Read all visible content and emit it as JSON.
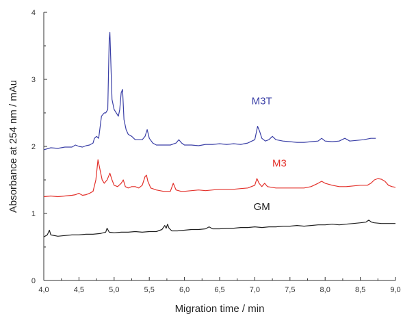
{
  "chart_data": {
    "type": "line",
    "xlabel": "Migration time / min",
    "ylabel": "Absorbance at 254 nm / mAu",
    "xlim": [
      4.0,
      9.0
    ],
    "ylim": [
      0,
      4
    ],
    "x_ticks": [
      4.0,
      4.5,
      5.0,
      5.5,
      6.0,
      6.5,
      7.0,
      7.5,
      8.0,
      8.5,
      9.0
    ],
    "x_tick_labels": [
      "4,0",
      "4,5",
      "5,0",
      "5,5",
      "6,0",
      "6,5",
      "7,0",
      "7,5",
      "8,0",
      "8,5",
      "9,0"
    ],
    "y_ticks": [
      0,
      1,
      2,
      3,
      4
    ],
    "y_tick_labels": [
      "0",
      "1",
      "2",
      "3",
      "4"
    ],
    "grid": false,
    "series": [
      {
        "name": "M3T",
        "color": "#3a3fa6",
        "points": [
          [
            4.0,
            1.95
          ],
          [
            4.1,
            1.98
          ],
          [
            4.2,
            1.97
          ],
          [
            4.3,
            1.99
          ],
          [
            4.4,
            1.99
          ],
          [
            4.45,
            2.02
          ],
          [
            4.5,
            2.0
          ],
          [
            4.55,
            1.99
          ],
          [
            4.6,
            2.01
          ],
          [
            4.65,
            2.02
          ],
          [
            4.7,
            2.05
          ],
          [
            4.72,
            2.12
          ],
          [
            4.75,
            2.15
          ],
          [
            4.78,
            2.12
          ],
          [
            4.82,
            2.45
          ],
          [
            4.86,
            2.5
          ],
          [
            4.88,
            2.5
          ],
          [
            4.91,
            2.55
          ],
          [
            4.93,
            3.6
          ],
          [
            4.94,
            3.7
          ],
          [
            4.95,
            3.35
          ],
          [
            4.97,
            2.7
          ],
          [
            5.0,
            2.55
          ],
          [
            5.03,
            2.5
          ],
          [
            5.06,
            2.45
          ],
          [
            5.08,
            2.55
          ],
          [
            5.1,
            2.8
          ],
          [
            5.12,
            2.85
          ],
          [
            5.14,
            2.4
          ],
          [
            5.17,
            2.25
          ],
          [
            5.2,
            2.18
          ],
          [
            5.25,
            2.15
          ],
          [
            5.3,
            2.1
          ],
          [
            5.35,
            2.1
          ],
          [
            5.4,
            2.1
          ],
          [
            5.44,
            2.15
          ],
          [
            5.47,
            2.25
          ],
          [
            5.5,
            2.12
          ],
          [
            5.55,
            2.05
          ],
          [
            5.6,
            2.02
          ],
          [
            5.7,
            2.02
          ],
          [
            5.8,
            2.02
          ],
          [
            5.88,
            2.05
          ],
          [
            5.92,
            2.1
          ],
          [
            5.96,
            2.05
          ],
          [
            6.0,
            2.02
          ],
          [
            6.1,
            2.02
          ],
          [
            6.2,
            2.01
          ],
          [
            6.3,
            2.03
          ],
          [
            6.4,
            2.03
          ],
          [
            6.5,
            2.04
          ],
          [
            6.6,
            2.03
          ],
          [
            6.7,
            2.04
          ],
          [
            6.8,
            2.03
          ],
          [
            6.9,
            2.05
          ],
          [
            7.0,
            2.1
          ],
          [
            7.04,
            2.3
          ],
          [
            7.07,
            2.22
          ],
          [
            7.1,
            2.12
          ],
          [
            7.15,
            2.08
          ],
          [
            7.2,
            2.1
          ],
          [
            7.25,
            2.15
          ],
          [
            7.3,
            2.1
          ],
          [
            7.4,
            2.08
          ],
          [
            7.5,
            2.07
          ],
          [
            7.6,
            2.06
          ],
          [
            7.7,
            2.06
          ],
          [
            7.8,
            2.07
          ],
          [
            7.9,
            2.08
          ],
          [
            7.95,
            2.12
          ],
          [
            8.0,
            2.08
          ],
          [
            8.1,
            2.07
          ],
          [
            8.2,
            2.08
          ],
          [
            8.28,
            2.12
          ],
          [
            8.35,
            2.08
          ],
          [
            8.45,
            2.09
          ],
          [
            8.55,
            2.1
          ],
          [
            8.65,
            2.12
          ],
          [
            8.72,
            2.12
          ]
        ]
      },
      {
        "name": "M3",
        "color": "#e3302a",
        "points": [
          [
            4.0,
            1.25
          ],
          [
            4.1,
            1.26
          ],
          [
            4.2,
            1.25
          ],
          [
            4.3,
            1.26
          ],
          [
            4.4,
            1.27
          ],
          [
            4.45,
            1.28
          ],
          [
            4.5,
            1.3
          ],
          [
            4.55,
            1.27
          ],
          [
            4.6,
            1.28
          ],
          [
            4.65,
            1.3
          ],
          [
            4.7,
            1.33
          ],
          [
            4.74,
            1.5
          ],
          [
            4.77,
            1.8
          ],
          [
            4.8,
            1.65
          ],
          [
            4.83,
            1.5
          ],
          [
            4.86,
            1.45
          ],
          [
            4.9,
            1.5
          ],
          [
            4.94,
            1.6
          ],
          [
            4.97,
            1.5
          ],
          [
            5.0,
            1.42
          ],
          [
            5.05,
            1.4
          ],
          [
            5.1,
            1.45
          ],
          [
            5.13,
            1.5
          ],
          [
            5.16,
            1.4
          ],
          [
            5.2,
            1.38
          ],
          [
            5.25,
            1.4
          ],
          [
            5.3,
            1.4
          ],
          [
            5.35,
            1.38
          ],
          [
            5.4,
            1.42
          ],
          [
            5.44,
            1.55
          ],
          [
            5.46,
            1.57
          ],
          [
            5.48,
            1.48
          ],
          [
            5.52,
            1.38
          ],
          [
            5.6,
            1.35
          ],
          [
            5.7,
            1.33
          ],
          [
            5.8,
            1.33
          ],
          [
            5.84,
            1.45
          ],
          [
            5.88,
            1.35
          ],
          [
            5.95,
            1.33
          ],
          [
            6.0,
            1.33
          ],
          [
            6.1,
            1.34
          ],
          [
            6.2,
            1.35
          ],
          [
            6.3,
            1.34
          ],
          [
            6.4,
            1.35
          ],
          [
            6.5,
            1.36
          ],
          [
            6.6,
            1.36
          ],
          [
            6.7,
            1.36
          ],
          [
            6.8,
            1.37
          ],
          [
            6.9,
            1.38
          ],
          [
            7.0,
            1.42
          ],
          [
            7.03,
            1.52
          ],
          [
            7.06,
            1.45
          ],
          [
            7.1,
            1.4
          ],
          [
            7.14,
            1.45
          ],
          [
            7.18,
            1.4
          ],
          [
            7.3,
            1.38
          ],
          [
            7.5,
            1.38
          ],
          [
            7.7,
            1.38
          ],
          [
            7.8,
            1.4
          ],
          [
            7.9,
            1.45
          ],
          [
            7.95,
            1.48
          ],
          [
            8.0,
            1.45
          ],
          [
            8.1,
            1.42
          ],
          [
            8.2,
            1.4
          ],
          [
            8.3,
            1.4
          ],
          [
            8.4,
            1.41
          ],
          [
            8.5,
            1.42
          ],
          [
            8.6,
            1.42
          ],
          [
            8.65,
            1.45
          ],
          [
            8.7,
            1.5
          ],
          [
            8.75,
            1.52
          ],
          [
            8.8,
            1.51
          ],
          [
            8.85,
            1.48
          ],
          [
            8.9,
            1.42
          ],
          [
            8.95,
            1.4
          ],
          [
            9.0,
            1.39
          ]
        ]
      },
      {
        "name": "GM",
        "color": "#1e1e1e",
        "points": [
          [
            4.0,
            0.65
          ],
          [
            4.05,
            0.68
          ],
          [
            4.08,
            0.75
          ],
          [
            4.1,
            0.68
          ],
          [
            4.2,
            0.66
          ],
          [
            4.3,
            0.67
          ],
          [
            4.4,
            0.68
          ],
          [
            4.5,
            0.68
          ],
          [
            4.6,
            0.69
          ],
          [
            4.7,
            0.69
          ],
          [
            4.8,
            0.7
          ],
          [
            4.88,
            0.72
          ],
          [
            4.9,
            0.78
          ],
          [
            4.93,
            0.72
          ],
          [
            5.0,
            0.71
          ],
          [
            5.1,
            0.72
          ],
          [
            5.2,
            0.72
          ],
          [
            5.3,
            0.73
          ],
          [
            5.4,
            0.72
          ],
          [
            5.5,
            0.73
          ],
          [
            5.6,
            0.73
          ],
          [
            5.68,
            0.76
          ],
          [
            5.72,
            0.82
          ],
          [
            5.74,
            0.78
          ],
          [
            5.76,
            0.84
          ],
          [
            5.78,
            0.78
          ],
          [
            5.82,
            0.74
          ],
          [
            5.9,
            0.74
          ],
          [
            6.0,
            0.75
          ],
          [
            6.1,
            0.76
          ],
          [
            6.2,
            0.76
          ],
          [
            6.3,
            0.77
          ],
          [
            6.35,
            0.8
          ],
          [
            6.4,
            0.77
          ],
          [
            6.5,
            0.77
          ],
          [
            6.6,
            0.78
          ],
          [
            6.7,
            0.78
          ],
          [
            6.8,
            0.79
          ],
          [
            6.9,
            0.79
          ],
          [
            7.0,
            0.8
          ],
          [
            7.1,
            0.79
          ],
          [
            7.2,
            0.8
          ],
          [
            7.3,
            0.8
          ],
          [
            7.4,
            0.81
          ],
          [
            7.5,
            0.81
          ],
          [
            7.6,
            0.82
          ],
          [
            7.7,
            0.81
          ],
          [
            7.8,
            0.82
          ],
          [
            7.9,
            0.83
          ],
          [
            8.0,
            0.83
          ],
          [
            8.1,
            0.84
          ],
          [
            8.2,
            0.83
          ],
          [
            8.3,
            0.84
          ],
          [
            8.4,
            0.85
          ],
          [
            8.5,
            0.86
          ],
          [
            8.58,
            0.87
          ],
          [
            8.62,
            0.9
          ],
          [
            8.66,
            0.87
          ],
          [
            8.7,
            0.86
          ],
          [
            8.8,
            0.85
          ],
          [
            8.9,
            0.85
          ],
          [
            9.0,
            0.85
          ]
        ]
      }
    ],
    "annotations": [
      {
        "text": "M3T",
        "x": 7.1,
        "y": 2.63,
        "color": "#3a3fa6"
      },
      {
        "text": "M3",
        "x": 7.35,
        "y": 1.7,
        "color": "#e3302a"
      },
      {
        "text": "GM",
        "x": 7.1,
        "y": 1.05,
        "color": "#1e1e1e"
      }
    ]
  }
}
